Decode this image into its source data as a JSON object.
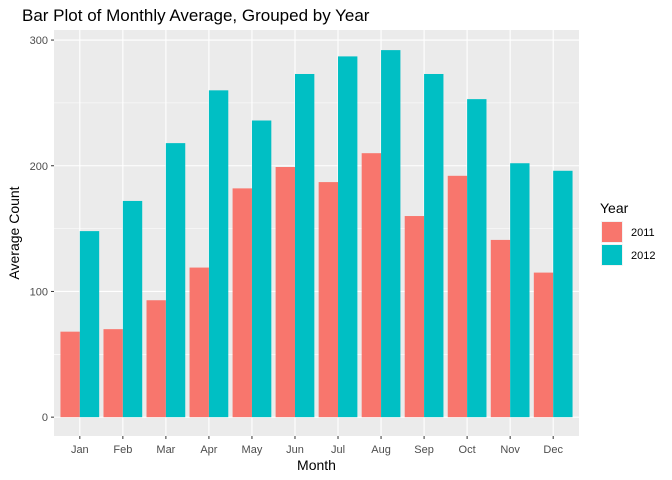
{
  "chart_data": {
    "type": "bar",
    "title": "Bar Plot of Monthly Average, Grouped by Year",
    "xlabel": "Month",
    "ylabel": "Average Count",
    "categories": [
      "Jan",
      "Feb",
      "Mar",
      "Apr",
      "May",
      "Jun",
      "Jul",
      "Aug",
      "Sep",
      "Oct",
      "Nov",
      "Dec"
    ],
    "series": [
      {
        "name": "2011",
        "color": "#F8766D",
        "values": [
          68,
          70,
          93,
          119,
          182,
          199,
          187,
          210,
          160,
          192,
          141,
          115
        ]
      },
      {
        "name": "2012",
        "color": "#00BFC4",
        "values": [
          148,
          172,
          218,
          260,
          236,
          273,
          287,
          292,
          273,
          253,
          202,
          196
        ]
      }
    ],
    "ylim": [
      -15,
      308
    ],
    "yticks": [
      0,
      100,
      200,
      300
    ],
    "y_minor_ticks": [
      50,
      150,
      250
    ],
    "grid": true,
    "panel_background": "#EBEBEB",
    "legend_title": "Year",
    "legend_position": "right"
  }
}
